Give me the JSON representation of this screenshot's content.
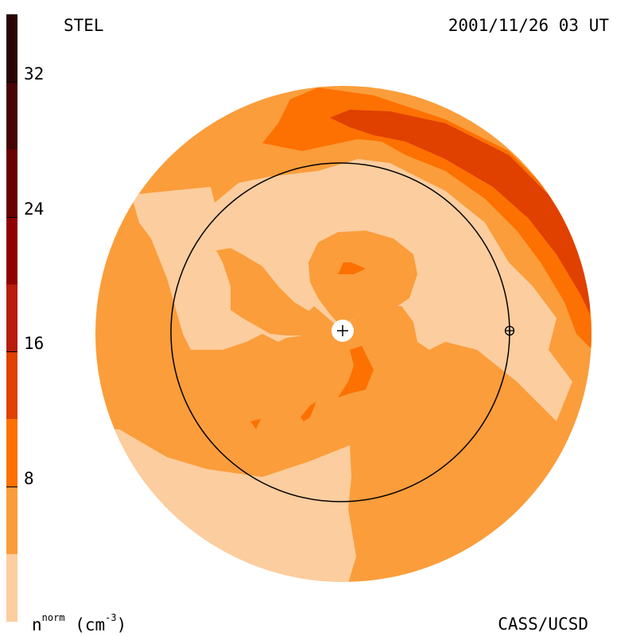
{
  "header": {
    "source": "STEL",
    "timestamp": "2001/11/26 03 UT"
  },
  "footer": {
    "credit": "CASS/UCSD",
    "unit_base": "n",
    "unit_sup": "norm",
    "unit_paren": "(cm",
    "unit_exp": "-3",
    "unit_close": ")"
  },
  "colorbar": {
    "levels": [
      {
        "min": 0,
        "max": 4,
        "color": "#fccd9e"
      },
      {
        "min": 4,
        "max": 8,
        "color": "#fb9d3b"
      },
      {
        "min": 8,
        "max": 12,
        "color": "#fc7101"
      },
      {
        "min": 12,
        "max": 16,
        "color": "#e04000"
      },
      {
        "min": 16,
        "max": 20,
        "color": "#b81c0c"
      },
      {
        "min": 20,
        "max": 24,
        "color": "#900000"
      },
      {
        "min": 24,
        "max": 28,
        "color": "#680000"
      },
      {
        "min": 28,
        "max": 32,
        "color": "#460404"
      },
      {
        "min": 32,
        "max": 36,
        "color": "#2a0404"
      }
    ],
    "tick_values": [
      "8",
      "16",
      "24",
      "32"
    ]
  },
  "chart_data": {
    "type": "heatmap",
    "title": "STEL 2001/11/26 03 UT",
    "variable": "normalized density n^norm",
    "unit": "cm^-3",
    "scale_range": [
      0,
      36
    ],
    "ticks": [
      8,
      16,
      24,
      32
    ],
    "contour_interval": 4,
    "view": "Sky-sweep map centered on the Sun, with the Earth's-orbit circle and a marker on it",
    "regions": [
      {
        "level_range": [
          0,
          4
        ],
        "color": "#fccd9e",
        "description": "Light bands inside the circle and the lower-left/bottom outer area"
      },
      {
        "level_range": [
          4,
          8
        ],
        "color": "#fb9d3b",
        "description": "Background of most of the disk"
      },
      {
        "level_range": [
          8,
          12
        ],
        "color": "#fc7101",
        "description": "Outer band at the top-right and small patches near the Sun"
      },
      {
        "level_range": [
          12,
          16
        ],
        "color": "#e04000",
        "description": "Dense arc along the top-right edge"
      }
    ],
    "markers": [
      {
        "name": "Sun",
        "symbol": "+"
      },
      {
        "name": "Earth",
        "symbol": "⊕"
      }
    ]
  }
}
